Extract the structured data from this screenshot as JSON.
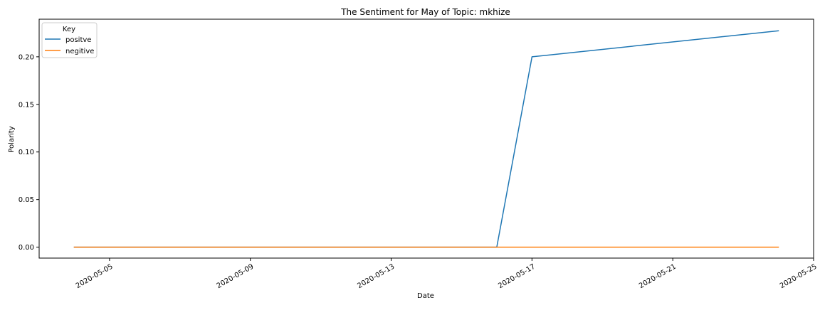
{
  "chart_data": {
    "type": "line",
    "title": "The Sentiment for May of Topic: mkhize",
    "xlabel": "Date",
    "ylabel": "Polarity",
    "x_type": "date",
    "xlim": [
      "2020-05-03",
      "2020-05-25"
    ],
    "ylim": [
      -0.0115,
      0.2395
    ],
    "x_ticks": [
      "2020-05-05",
      "2020-05-09",
      "2020-05-13",
      "2020-05-17",
      "2020-05-21",
      "2020-05-25"
    ],
    "y_ticks": [
      0.0,
      0.05,
      0.1,
      0.15,
      0.2
    ],
    "y_tick_labels": [
      "0.00",
      "0.05",
      "0.10",
      "0.15",
      "0.20"
    ],
    "grid": false,
    "legend": {
      "title": "Key",
      "placement": "top-left"
    },
    "series": [
      {
        "name": "positve",
        "color": "#1f77b4",
        "x": [
          "2020-05-04",
          "2020-05-16",
          "2020-05-17",
          "2020-05-24"
        ],
        "y": [
          0.0,
          0.0,
          0.2,
          0.2273
        ]
      },
      {
        "name": "negitive",
        "color": "#ff7f0e",
        "x": [
          "2020-05-04",
          "2020-05-16",
          "2020-05-17",
          "2020-05-24"
        ],
        "y": [
          0.0,
          0.0,
          0.0,
          0.0
        ]
      }
    ]
  }
}
